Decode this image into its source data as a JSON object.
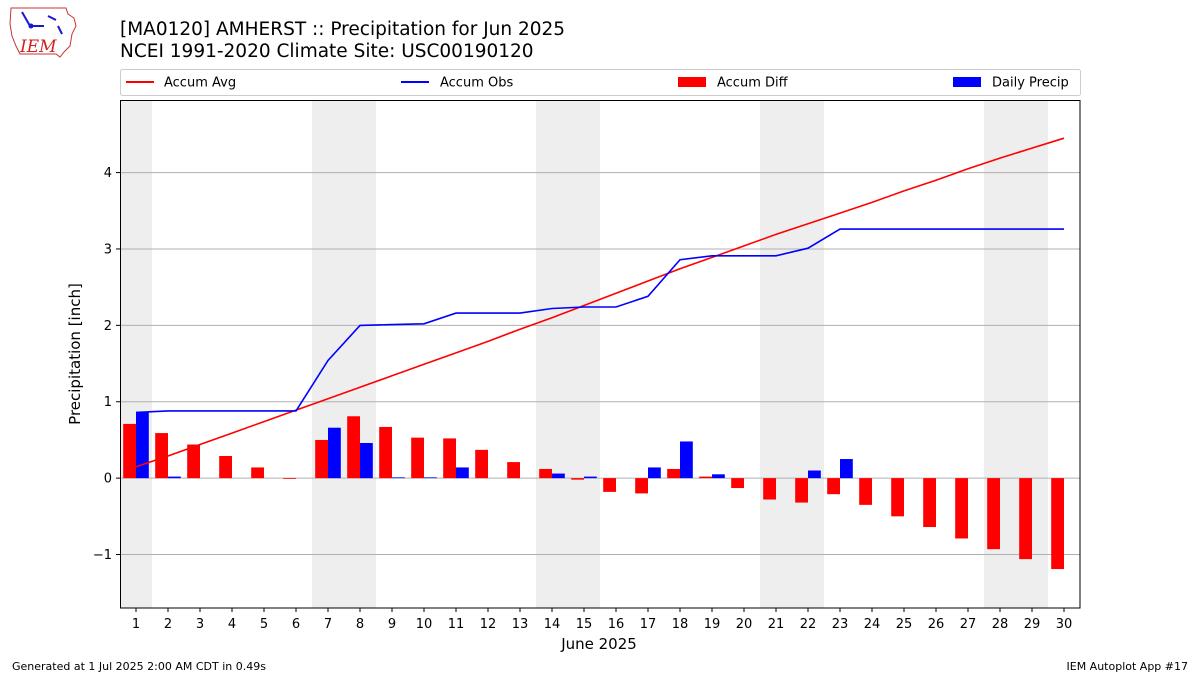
{
  "header": {
    "logo_text": "IEM",
    "title": "[MA0120] AMHERST :: Precipitation for Jun 2025",
    "subtitle": "NCEI 1991-2020 Climate Site: USC00190120"
  },
  "footer": {
    "left": "Generated at 1 Jul 2025 2:00 AM CDT in 0.49s",
    "right": "IEM Autoplot App #17"
  },
  "colors": {
    "avg": "#ff0000",
    "obs": "#0000ff",
    "diff": "#ff0000",
    "daily": "#0000ff",
    "weekend_shade": "#eeeeee",
    "grid": "#b0b0b0"
  },
  "chart_data": {
    "type": "bar",
    "xlabel": "June 2025",
    "ylabel": "Precipitation [inch]",
    "xlim": [
      0.5,
      30.5
    ],
    "ylim": [
      -1.7,
      4.95
    ],
    "yticks": [
      -1,
      0,
      1,
      2,
      3,
      4
    ],
    "ytick_labels": [
      "−1",
      "0",
      "1",
      "2",
      "3",
      "4"
    ],
    "grid": "y",
    "legend_position": "top",
    "legend": [
      {
        "label": "Accum Avg",
        "kind": "line",
        "color": "#ff0000"
      },
      {
        "label": "Accum Obs",
        "kind": "line",
        "color": "#0000ff"
      },
      {
        "label": "Accum Diff",
        "kind": "bar",
        "color": "#ff0000"
      },
      {
        "label": "Daily Precip",
        "kind": "bar",
        "color": "#0000ff"
      }
    ],
    "shaded_days": [
      1,
      7,
      8,
      14,
      15,
      21,
      22,
      28,
      29
    ],
    "days": [
      1,
      2,
      3,
      4,
      5,
      6,
      7,
      8,
      9,
      10,
      11,
      12,
      13,
      14,
      15,
      16,
      17,
      18,
      19,
      20,
      21,
      22,
      23,
      24,
      25,
      26,
      27,
      28,
      29,
      30
    ],
    "series": [
      {
        "name": "Accum Avg",
        "type": "line",
        "values": [
          0.15,
          0.29,
          0.44,
          0.59,
          0.74,
          0.89,
          1.04,
          1.19,
          1.34,
          1.49,
          1.64,
          1.79,
          1.95,
          2.1,
          2.26,
          2.42,
          2.58,
          2.74,
          2.89,
          3.04,
          3.19,
          3.33,
          3.47,
          3.61,
          3.76,
          3.9,
          4.05,
          4.19,
          4.32,
          4.45
        ]
      },
      {
        "name": "Accum Obs",
        "type": "line",
        "values": [
          0.86,
          0.88,
          0.88,
          0.88,
          0.88,
          0.88,
          1.54,
          2.0,
          2.01,
          2.02,
          2.16,
          2.16,
          2.16,
          2.22,
          2.24,
          2.24,
          2.38,
          2.86,
          2.91,
          2.91,
          2.91,
          3.01,
          3.26,
          3.26,
          3.26,
          3.26,
          3.26,
          3.26,
          3.26,
          3.26
        ]
      },
      {
        "name": "Accum Diff",
        "type": "bar",
        "values": [
          0.71,
          0.59,
          0.44,
          0.29,
          0.14,
          -0.01,
          0.5,
          0.81,
          0.67,
          0.53,
          0.52,
          0.37,
          0.21,
          0.12,
          -0.02,
          -0.18,
          -0.2,
          0.12,
          0.02,
          -0.13,
          -0.28,
          -0.32,
          -0.21,
          -0.35,
          -0.5,
          -0.64,
          -0.79,
          -0.93,
          -1.06,
          -1.19
        ]
      },
      {
        "name": "Daily Precip",
        "type": "bar",
        "values": [
          0.86,
          0.02,
          0.0,
          0.0,
          0.0,
          0.0,
          0.66,
          0.46,
          0.01,
          0.01,
          0.14,
          0.0,
          0.0,
          0.06,
          0.02,
          0.0,
          0.14,
          0.48,
          0.05,
          0.0,
          0.0,
          0.1,
          0.25,
          0.0,
          0.0,
          0.0,
          0.0,
          0.0,
          0.0,
          0.0
        ]
      }
    ]
  }
}
